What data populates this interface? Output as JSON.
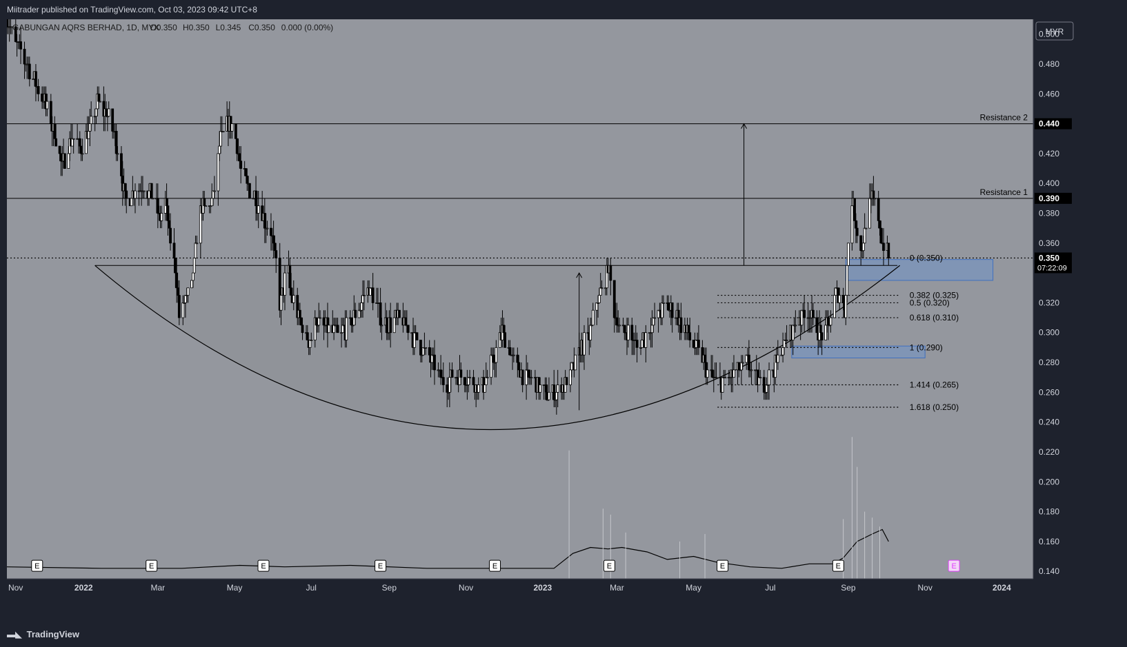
{
  "header": {
    "published_by": "Miitrader published on TradingView.com, Oct 03, 2023 09:42 UTC+8"
  },
  "footer": {
    "brand": "TradingView",
    "brand_icon": "tradingview-logo-icon"
  },
  "chart_data": {
    "type": "candlestick",
    "instrument": {
      "legend": "GABUNGAN AQRS BERHAD, 1D, MYX",
      "open_label": "O0.350",
      "high_label": "H0.350",
      "low_label": "L0.345",
      "close_label": "C0.350",
      "change_label": "0.000 (0.00%)"
    },
    "currency": "MYR",
    "y_axis": {
      "ticks": [
        0.5,
        0.48,
        0.46,
        0.42,
        0.4,
        0.38,
        0.36,
        0.32,
        0.3,
        0.28,
        0.26,
        0.24,
        0.22,
        0.2,
        0.18,
        0.16,
        0.14
      ],
      "ylim": [
        0.135,
        0.51
      ],
      "decimals": 3
    },
    "x_axis": {
      "labels": [
        "Nov",
        "2022",
        "Mar",
        "May",
        "Jul",
        "Sep",
        "Nov",
        "2023",
        "Mar",
        "May",
        "Jul",
        "Sep",
        "Nov",
        "2024"
      ],
      "label_dates": [
        "2021-11-01",
        "2022-01-01",
        "2022-03-01",
        "2022-05-01",
        "2022-07-01",
        "2022-09-01",
        "2022-11-01",
        "2023-01-01",
        "2023-03-01",
        "2023-05-01",
        "2023-07-01",
        "2023-09-01",
        "2023-11-01",
        "2024-01-01"
      ],
      "bold": [
        "2022",
        "2023",
        "2024"
      ],
      "xlim": [
        "2021-11-01",
        "2024-01-26"
      ]
    },
    "price_path": [
      [
        "2021-11-01",
        0.51
      ],
      [
        "2021-11-10",
        0.49
      ],
      [
        "2021-11-20",
        0.475
      ],
      [
        "2021-12-01",
        0.455
      ],
      [
        "2021-12-10",
        0.43
      ],
      [
        "2021-12-15",
        0.41
      ],
      [
        "2021-12-22",
        0.43
      ],
      [
        "2021-12-30",
        0.425
      ],
      [
        "2022-01-08",
        0.44
      ],
      [
        "2022-01-12",
        0.455
      ],
      [
        "2022-01-20",
        0.445
      ],
      [
        "2022-01-28",
        0.425
      ],
      [
        "2022-02-03",
        0.39
      ],
      [
        "2022-02-10",
        0.395
      ],
      [
        "2022-02-18",
        0.4
      ],
      [
        "2022-02-25",
        0.39
      ],
      [
        "2022-03-03",
        0.375
      ],
      [
        "2022-03-07",
        0.39
      ],
      [
        "2022-03-10",
        0.365
      ],
      [
        "2022-03-15",
        0.345
      ],
      [
        "2022-03-18",
        0.31
      ],
      [
        "2022-03-22",
        0.32
      ],
      [
        "2022-03-28",
        0.33
      ],
      [
        "2022-04-01",
        0.365
      ],
      [
        "2022-04-05",
        0.385
      ],
      [
        "2022-04-10",
        0.38
      ],
      [
        "2022-04-15",
        0.395
      ],
      [
        "2022-04-20",
        0.43
      ],
      [
        "2022-04-25",
        0.44
      ],
      [
        "2022-04-29",
        0.44
      ],
      [
        "2022-05-03",
        0.425
      ],
      [
        "2022-05-06",
        0.41
      ],
      [
        "2022-05-10",
        0.4
      ],
      [
        "2022-05-15",
        0.395
      ],
      [
        "2022-05-20",
        0.385
      ],
      [
        "2022-05-25",
        0.375
      ],
      [
        "2022-05-30",
        0.37
      ],
      [
        "2022-06-03",
        0.345
      ],
      [
        "2022-06-06",
        0.32
      ],
      [
        "2022-06-09",
        0.33
      ],
      [
        "2022-06-12",
        0.345
      ],
      [
        "2022-06-15",
        0.325
      ],
      [
        "2022-06-20",
        0.315
      ],
      [
        "2022-06-25",
        0.3
      ],
      [
        "2022-06-30",
        0.295
      ],
      [
        "2022-07-05",
        0.31
      ],
      [
        "2022-07-10",
        0.305
      ],
      [
        "2022-07-15",
        0.3
      ],
      [
        "2022-07-25",
        0.3
      ],
      [
        "2022-08-01",
        0.305
      ],
      [
        "2022-08-08",
        0.315
      ],
      [
        "2022-08-15",
        0.33
      ],
      [
        "2022-08-20",
        0.325
      ],
      [
        "2022-08-25",
        0.31
      ],
      [
        "2022-09-01",
        0.305
      ],
      [
        "2022-09-08",
        0.31
      ],
      [
        "2022-09-15",
        0.305
      ],
      [
        "2022-09-22",
        0.295
      ],
      [
        "2022-10-01",
        0.285
      ],
      [
        "2022-10-08",
        0.275
      ],
      [
        "2022-10-15",
        0.265
      ],
      [
        "2022-10-22",
        0.27
      ],
      [
        "2022-10-30",
        0.27
      ],
      [
        "2022-11-07",
        0.265
      ],
      [
        "2022-11-15",
        0.265
      ],
      [
        "2022-11-22",
        0.28
      ],
      [
        "2022-11-30",
        0.3
      ],
      [
        "2022-12-05",
        0.29
      ],
      [
        "2022-12-12",
        0.275
      ],
      [
        "2022-12-20",
        0.27
      ],
      [
        "2022-12-28",
        0.265
      ],
      [
        "2023-01-05",
        0.26
      ],
      [
        "2023-01-12",
        0.26
      ],
      [
        "2023-01-18",
        0.265
      ],
      [
        "2023-01-25",
        0.275
      ],
      [
        "2023-02-01",
        0.29
      ],
      [
        "2023-02-08",
        0.3
      ],
      [
        "2023-02-12",
        0.32
      ],
      [
        "2023-02-18",
        0.33
      ],
      [
        "2023-02-22",
        0.345
      ],
      [
        "2023-02-26",
        0.32
      ],
      [
        "2023-03-02",
        0.305
      ],
      [
        "2023-03-10",
        0.3
      ],
      [
        "2023-03-18",
        0.29
      ],
      [
        "2023-03-25",
        0.3
      ],
      [
        "2023-04-01",
        0.31
      ],
      [
        "2023-04-08",
        0.32
      ],
      [
        "2023-04-15",
        0.315
      ],
      [
        "2023-04-22",
        0.305
      ],
      [
        "2023-04-30",
        0.295
      ],
      [
        "2023-05-07",
        0.285
      ],
      [
        "2023-05-14",
        0.27
      ],
      [
        "2023-05-21",
        0.265
      ],
      [
        "2023-05-28",
        0.27
      ],
      [
        "2023-06-05",
        0.275
      ],
      [
        "2023-06-12",
        0.28
      ],
      [
        "2023-06-19",
        0.27
      ],
      [
        "2023-06-26",
        0.265
      ],
      [
        "2023-07-03",
        0.275
      ],
      [
        "2023-07-10",
        0.29
      ],
      [
        "2023-07-17",
        0.3
      ],
      [
        "2023-07-24",
        0.31
      ],
      [
        "2023-07-31",
        0.315
      ],
      [
        "2023-08-05",
        0.305
      ],
      [
        "2023-08-12",
        0.295
      ],
      [
        "2023-08-18",
        0.31
      ],
      [
        "2023-08-22",
        0.325
      ],
      [
        "2023-08-26",
        0.33
      ],
      [
        "2023-08-29",
        0.315
      ],
      [
        "2023-09-01",
        0.36
      ],
      [
        "2023-09-03",
        0.395
      ],
      [
        "2023-09-06",
        0.38
      ],
      [
        "2023-09-09",
        0.36
      ],
      [
        "2023-09-12",
        0.355
      ],
      [
        "2023-09-16",
        0.38
      ],
      [
        "2023-09-20",
        0.39
      ],
      [
        "2023-09-24",
        0.385
      ],
      [
        "2023-09-28",
        0.36
      ],
      [
        "2023-10-03",
        0.35
      ]
    ],
    "volume": {
      "ma_path": [
        [
          "2021-11-01",
          0.143
        ],
        [
          "2022-01-15",
          0.142
        ],
        [
          "2022-03-20",
          0.142
        ],
        [
          "2022-05-05",
          0.144
        ],
        [
          "2022-06-10",
          0.143
        ],
        [
          "2022-08-01",
          0.144
        ],
        [
          "2022-10-01",
          0.142
        ],
        [
          "2022-12-01",
          0.142
        ],
        [
          "2023-01-10",
          0.142
        ],
        [
          "2023-01-25",
          0.152
        ],
        [
          "2023-02-08",
          0.156
        ],
        [
          "2023-02-22",
          0.155
        ],
        [
          "2023-03-05",
          0.156
        ],
        [
          "2023-03-25",
          0.153
        ],
        [
          "2023-04-10",
          0.148
        ],
        [
          "2023-05-01",
          0.15
        ],
        [
          "2023-05-20",
          0.146
        ],
        [
          "2023-06-15",
          0.143
        ],
        [
          "2023-07-10",
          0.142
        ],
        [
          "2023-08-01",
          0.145
        ],
        [
          "2023-08-20",
          0.145
        ],
        [
          "2023-08-28",
          0.149
        ],
        [
          "2023-09-08",
          0.16
        ],
        [
          "2023-09-20",
          0.165
        ],
        [
          "2023-09-28",
          0.168
        ],
        [
          "2023-10-03",
          0.16
        ]
      ],
      "spikes": [
        [
          "2023-01-22",
          0.221
        ],
        [
          "2023-02-18",
          0.182
        ],
        [
          "2023-02-24",
          0.178
        ],
        [
          "2023-03-08",
          0.166
        ],
        [
          "2023-04-20",
          0.16
        ],
        [
          "2023-05-10",
          0.165
        ],
        [
          "2023-08-28",
          0.175
        ],
        [
          "2023-09-04",
          0.23
        ],
        [
          "2023-09-08",
          0.21
        ],
        [
          "2023-09-14",
          0.18
        ],
        [
          "2023-09-20",
          0.176
        ],
        [
          "2023-09-26",
          0.17
        ]
      ]
    },
    "earnings_markers": [
      {
        "label": "E",
        "date": "2021-11-25",
        "state": "past"
      },
      {
        "label": "E",
        "date": "2022-02-24",
        "state": "past"
      },
      {
        "label": "E",
        "date": "2022-05-24",
        "state": "past"
      },
      {
        "label": "E",
        "date": "2022-08-25",
        "state": "past"
      },
      {
        "label": "E",
        "date": "2022-11-24",
        "state": "past"
      },
      {
        "label": "E",
        "date": "2023-02-23",
        "state": "past"
      },
      {
        "label": "E",
        "date": "2023-05-24",
        "state": "past"
      },
      {
        "label": "E",
        "date": "2023-08-24",
        "state": "past"
      },
      {
        "label": "E",
        "date": "2023-11-24",
        "state": "upcoming"
      }
    ],
    "horizontal_levels": [
      {
        "name": "Resistance 2",
        "price": 0.44,
        "price_label": "0.440",
        "label_pos": "right"
      },
      {
        "name": "Resistance 1",
        "price": 0.39,
        "price_label": "0.390",
        "label_pos": "right"
      }
    ],
    "last_price": {
      "price": 0.35,
      "label": "0.350",
      "countdown": "07:22:09"
    },
    "cup_neckline": {
      "price": 0.345,
      "from": "2022-01-10",
      "to": "2023-10-10"
    },
    "cup_curve": {
      "start": [
        "2022-01-10",
        0.345
      ],
      "control": [
        "2022-11-15",
        0.125
      ],
      "end": [
        "2023-10-12",
        0.345
      ]
    },
    "fibonacci": {
      "from": "2023-05-20",
      "to": "2023-10-12",
      "levels": [
        {
          "label": "0 (0.350)",
          "price": 0.35
        },
        {
          "label": "0.382 (0.325)",
          "price": 0.325
        },
        {
          "label": "0.5 (0.320)",
          "price": 0.32
        },
        {
          "label": "0.618 (0.310)",
          "price": 0.31
        },
        {
          "label": "1 (0.290)",
          "price": 0.29
        },
        {
          "label": "1.414 (0.265)",
          "price": 0.265
        },
        {
          "label": "1.618 (0.250)",
          "price": 0.25
        }
      ]
    },
    "arrows": [
      {
        "date": "2023-01-30",
        "from": 0.248,
        "to": 0.34
      },
      {
        "date": "2023-06-10",
        "from": 0.345,
        "to": 0.44
      }
    ],
    "zones": [
      {
        "from": "2023-07-18",
        "to": "2023-11-01",
        "top": 0.291,
        "bottom": 0.283
      },
      {
        "from": "2023-08-30",
        "to": "2023-12-25",
        "top": 0.349,
        "bottom": 0.335
      }
    ],
    "colors": {
      "panel_bg": "#1e222d",
      "plot_bg": "#94979e",
      "cup_fill": "#8c8f96",
      "zone": "#6f93c8",
      "zone_border": "#3f6fbf",
      "candle": "#000000",
      "text_light": "#d1d4dc",
      "upcoming_earnings": "#e040fb"
    }
  }
}
